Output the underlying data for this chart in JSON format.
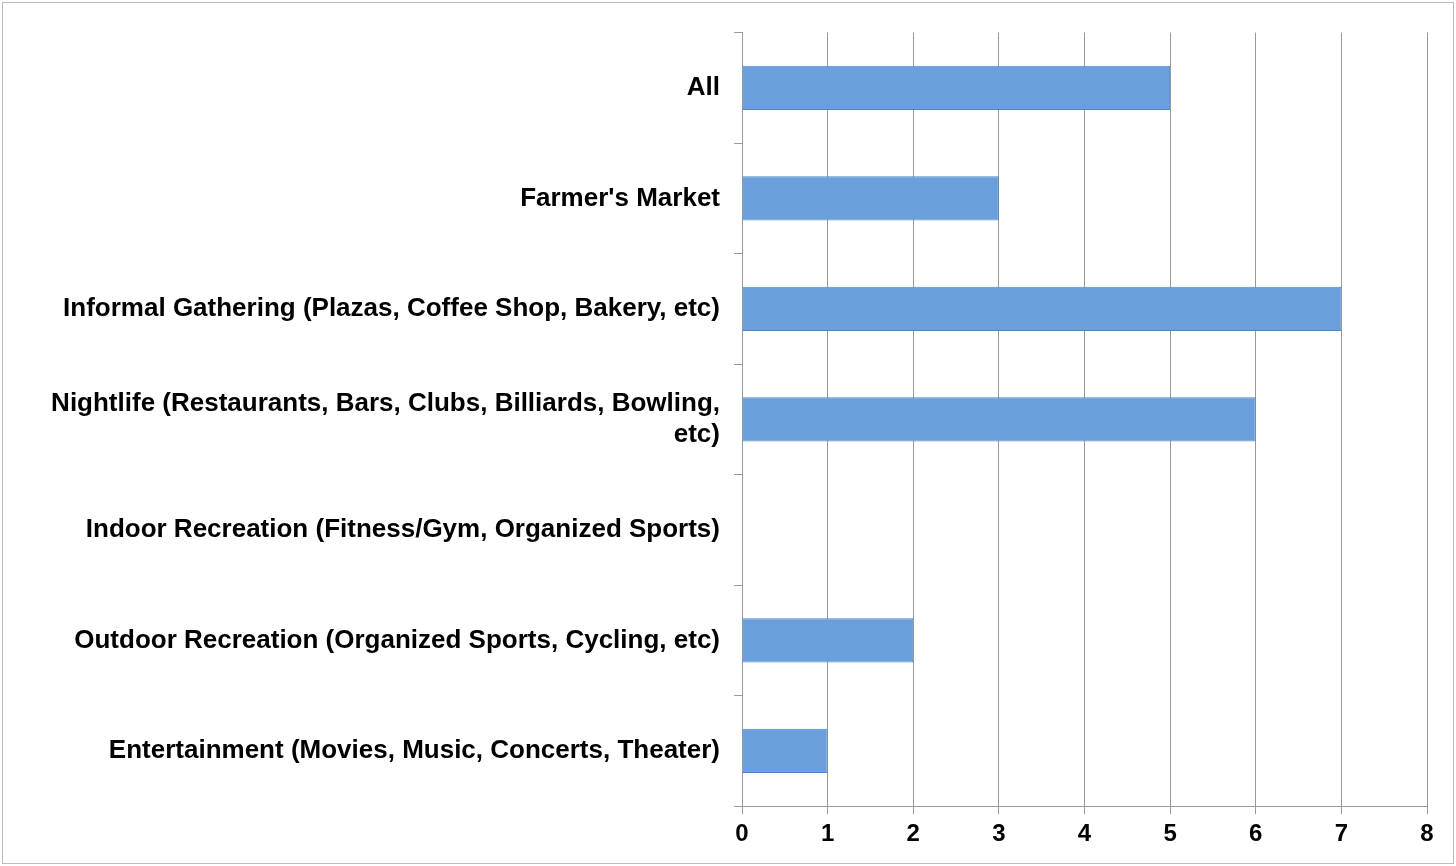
{
  "chart_data": {
    "type": "bar",
    "orientation": "horizontal",
    "categories": [
      "All",
      "Farmer's Market",
      "Informal Gathering (Plazas, Coffee Shop, Bakery, etc)",
      "Nightlife (Restaurants, Bars, Clubs, Billiards, Bowling, etc)",
      "Indoor Recreation (Fitness/Gym, Organized Sports)",
      "Outdoor Recreation (Organized Sports, Cycling, etc)",
      "Entertainment (Movies, Music, Concerts, Theater)"
    ],
    "values": [
      5,
      3,
      7,
      6,
      0,
      2,
      1
    ],
    "color": "#6a9fdc",
    "xlim": [
      0,
      8
    ],
    "xticks": [
      0,
      1,
      2,
      3,
      4,
      5,
      6,
      7,
      8
    ],
    "grid": "x",
    "legend": false
  }
}
